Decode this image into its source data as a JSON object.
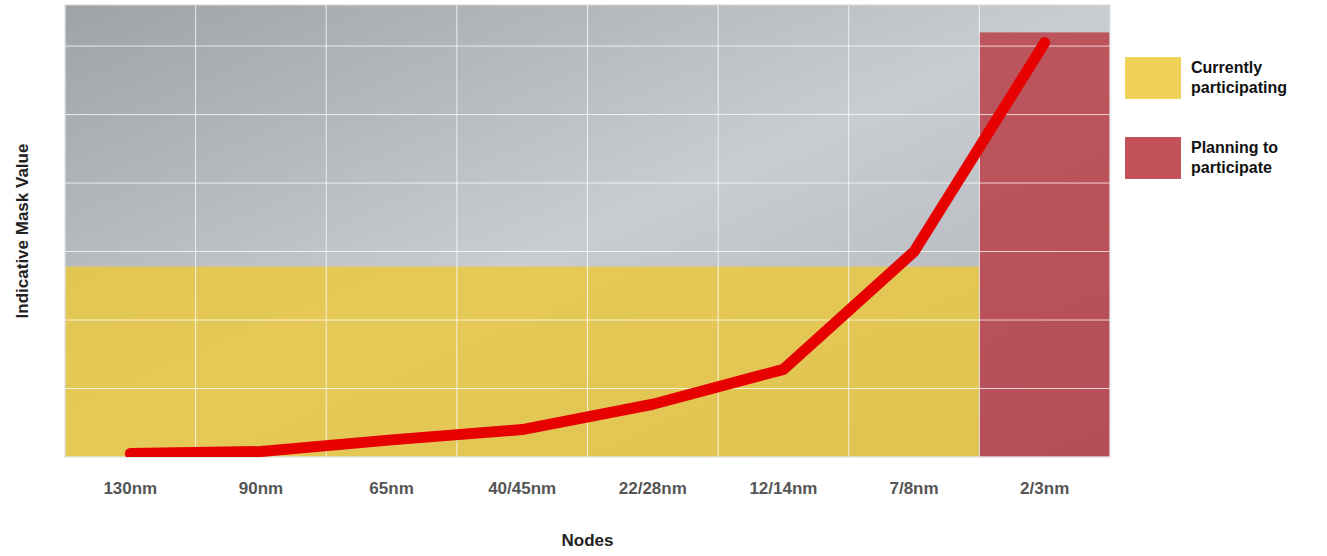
{
  "chart_data": {
    "type": "line",
    "x_label": "Nodes",
    "y_label": "Indicative Mask Value",
    "categories": [
      "130nm",
      "90nm",
      "65nm",
      "40/45nm",
      "22/28nm",
      "12/14nm",
      "7/8nm",
      "2/3nm"
    ],
    "series": [
      {
        "name": "Currently participating",
        "type": "bar",
        "color": "#ecc83c",
        "values": [
          2.78,
          2.78,
          2.78,
          2.78,
          2.78,
          2.78,
          2.78,
          null
        ]
      },
      {
        "name": "Planning to participate",
        "type": "bar",
        "color": "#b8333c",
        "values": [
          null,
          null,
          null,
          null,
          null,
          null,
          null,
          6.2
        ]
      },
      {
        "type": "line",
        "color": "#e60000",
        "values": [
          0.05,
          0.08,
          0.25,
          0.4,
          0.77,
          1.28,
          3.0,
          6.05
        ]
      }
    ],
    "ylim": [
      0,
      6.6
    ],
    "yticks": [
      0,
      1,
      2,
      3,
      4,
      5,
      6
    ],
    "grid": true,
    "legend": "right",
    "tick_labels": "x"
  }
}
